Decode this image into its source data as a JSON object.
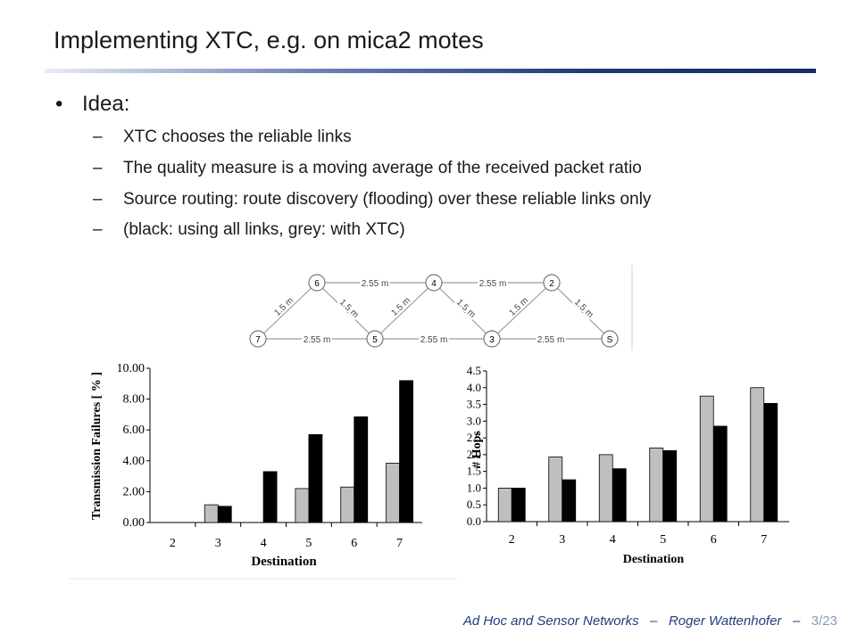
{
  "slide": {
    "title": "Implementing XTC, e.g. on mica2 motes",
    "bullet_mark": "•",
    "bullet": "Idea:",
    "dash": "–",
    "subpoints": [
      "XTC chooses the reliable links",
      "The quality measure is a moving average of the received packet ratio",
      "Source routing: route discovery (flooding) over these reliable links only",
      "(black: using all links, grey: with XTC)"
    ]
  },
  "network": {
    "nodes": [
      "6",
      "4",
      "2",
      "7",
      "5",
      "3",
      "S"
    ],
    "edge_labels": [
      "2.55 m",
      "2.55 m",
      "2.55 m",
      "2.55 m",
      "2.55 m",
      "1.5 m",
      "1.5 m",
      "1.5 m",
      "1.5 m",
      "1.5 m",
      "1.5 m"
    ]
  },
  "chart_data": [
    {
      "type": "bar",
      "categories": [
        "2",
        "3",
        "4",
        "5",
        "6",
        "7"
      ],
      "series": [
        {
          "color": "#bfbfbf",
          "values": [
            0,
            1.15,
            0,
            2.2,
            2.3,
            3.85
          ]
        },
        {
          "color": "#000000",
          "values": [
            0,
            1.05,
            3.3,
            5.7,
            6.85,
            9.2
          ]
        }
      ],
      "xlabel": "Destination",
      "ylabel": "Transmission Failures [ % ]",
      "ylim": [
        0,
        10
      ],
      "yticks": [
        "0.00",
        "2.00",
        "4.00",
        "6.00",
        "8.00",
        "10.00"
      ]
    },
    {
      "type": "bar",
      "categories": [
        "2",
        "3",
        "4",
        "5",
        "6",
        "7"
      ],
      "series": [
        {
          "color": "#bfbfbf",
          "values": [
            1.0,
            1.93,
            2.0,
            2.2,
            3.75,
            4.0
          ]
        },
        {
          "color": "#000000",
          "values": [
            1.0,
            1.25,
            1.58,
            2.12,
            2.85,
            3.53
          ]
        }
      ],
      "xlabel": "Destination",
      "ylabel": "# Hops",
      "ylim": [
        0,
        4.5
      ],
      "yticks": [
        "0.0",
        "0.5",
        "1.0",
        "1.5",
        "2.0",
        "2.5",
        "3.0",
        "3.5",
        "4.0",
        "4.5"
      ]
    }
  ],
  "footer": {
    "course": "Ad Hoc and Sensor Networks",
    "sep1": "–",
    "author": "Roger Wattenhofer",
    "sep2": "–",
    "page": "3/23"
  }
}
